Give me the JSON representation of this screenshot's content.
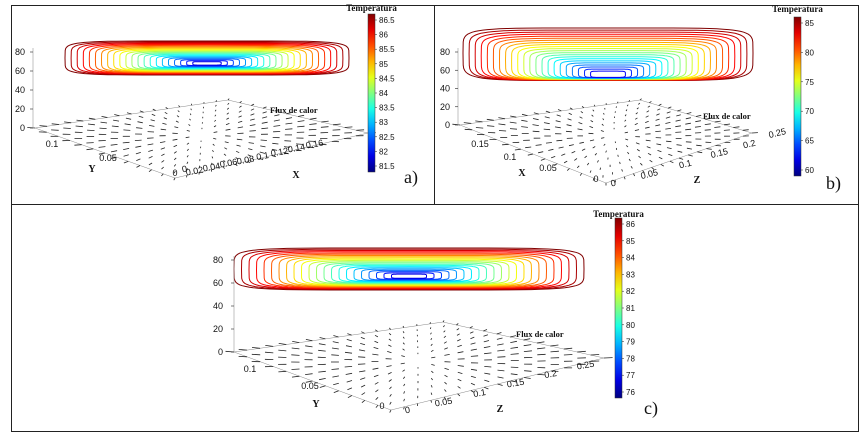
{
  "panels": [
    {
      "id": "a",
      "label": "a)",
      "colorbar_title": "Temperatura",
      "colorbar_ticks": [
        "86.5",
        "86",
        "85.5",
        "85",
        "84.5",
        "84",
        "83.5",
        "83",
        "82.5",
        "82",
        "81.5"
      ],
      "flux_label": "Flux de calor",
      "z_ticks": [
        "80",
        "60",
        "40",
        "20",
        "0"
      ],
      "depth_axis_label": "Y",
      "depth_ticks": [
        "0.1",
        "0.05",
        "0"
      ],
      "width_axis_label": "X",
      "width_ticks": [
        "0",
        "0.02",
        "0.04",
        "0.06",
        "0.08",
        "0.1",
        "0.12",
        "0.14",
        "0.16"
      ]
    },
    {
      "id": "b",
      "label": "b)",
      "colorbar_title": "Temperatura",
      "colorbar_ticks": [
        "85",
        "80",
        "75",
        "70",
        "65",
        "60"
      ],
      "flux_label": "Flux de calor",
      "z_ticks": [
        "80",
        "60",
        "40",
        "20",
        "0"
      ],
      "depth_axis_label": "X",
      "depth_ticks": [
        "0.15",
        "0.1",
        "0.05",
        "0"
      ],
      "width_axis_label": "Z",
      "width_ticks": [
        "0",
        "0.05",
        "0.1",
        "0.15",
        "0.2",
        "0.25"
      ]
    },
    {
      "id": "c",
      "label": "c)",
      "colorbar_title": "Temperatura",
      "colorbar_ticks": [
        "86",
        "85",
        "84",
        "83",
        "82",
        "81",
        "80",
        "79",
        "78",
        "77",
        "76"
      ],
      "flux_label": "Flux de calor",
      "z_ticks": [
        "80",
        "60",
        "40",
        "20",
        "0"
      ],
      "depth_axis_label": "Y",
      "depth_ticks": [
        "0.1",
        "0.05",
        "0"
      ],
      "width_axis_label": "Z",
      "width_ticks": [
        "0",
        "0.05",
        "0.1",
        "0.15",
        "0.2",
        "0.25"
      ]
    }
  ]
}
